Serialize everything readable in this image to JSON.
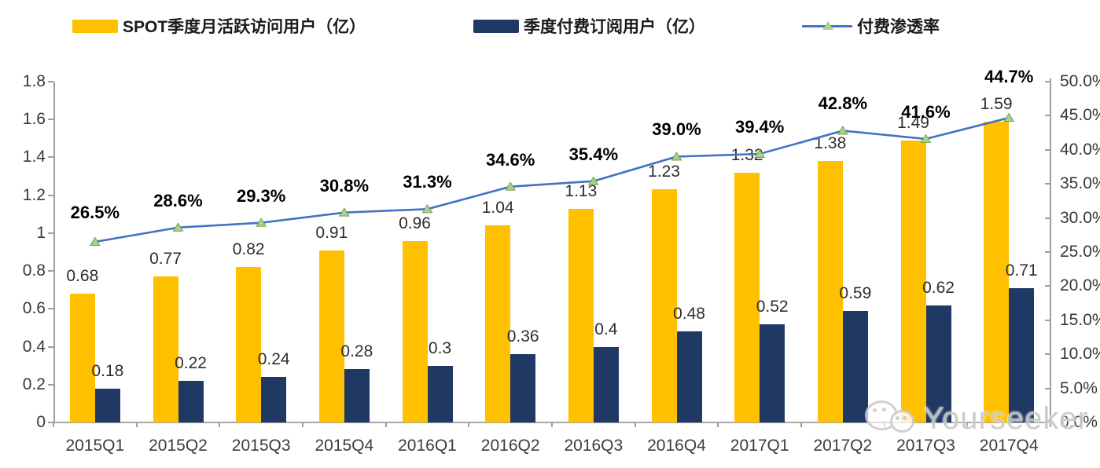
{
  "legend": {
    "items": [
      {
        "label": "SPOT季度月活跃访问用户（亿）",
        "color": "#FFC000",
        "type": "bar"
      },
      {
        "label": "季度付费订阅用户（亿）",
        "color": "#1F3864",
        "type": "bar"
      },
      {
        "label": "付费渗透率",
        "color": "#4472C4",
        "marker_color": "#A9D18E",
        "type": "line"
      }
    ]
  },
  "chart_data": {
    "type": "combo-bar-line",
    "categories": [
      "2015Q1",
      "2015Q2",
      "2015Q3",
      "2015Q4",
      "2016Q1",
      "2016Q2",
      "2016Q3",
      "2016Q4",
      "2017Q1",
      "2017Q2",
      "2017Q3",
      "2017Q4"
    ],
    "series": [
      {
        "name": "SPOT季度月活跃访问用户（亿）",
        "type": "bar",
        "axis": "left",
        "color": "#FFC000",
        "values": [
          0.68,
          0.77,
          0.82,
          0.91,
          0.96,
          1.04,
          1.13,
          1.23,
          1.32,
          1.38,
          1.49,
          1.59
        ],
        "labels": [
          "0.68",
          "0.77",
          "0.82",
          "0.91",
          "0.96",
          "1.04",
          "1.13",
          "1.23",
          "1.32",
          "1.38",
          "1.49",
          "1.59"
        ]
      },
      {
        "name": "季度付费订阅用户（亿）",
        "type": "bar",
        "axis": "left",
        "color": "#1F3864",
        "values": [
          0.18,
          0.22,
          0.24,
          0.28,
          0.3,
          0.36,
          0.4,
          0.48,
          0.52,
          0.59,
          0.62,
          0.71
        ],
        "labels": [
          "0.18",
          "0.22",
          "0.24",
          "0.28",
          "0.3",
          "0.36",
          "0.4",
          "0.48",
          "0.52",
          "0.59",
          "0.62",
          "0.71"
        ]
      },
      {
        "name": "付费渗透率",
        "type": "line",
        "axis": "right",
        "color": "#4472C4",
        "marker": "triangle",
        "marker_fill": "#A9D18E",
        "marker_stroke": "#71A544",
        "values": [
          26.5,
          28.6,
          29.3,
          30.8,
          31.3,
          34.6,
          35.4,
          39.0,
          39.4,
          42.8,
          41.6,
          44.7
        ],
        "labels": [
          "26.5%",
          "28.6%",
          "29.3%",
          "30.8%",
          "31.3%",
          "34.6%",
          "35.4%",
          "39.0%",
          "39.4%",
          "42.8%",
          "41.6%",
          "44.7%"
        ]
      }
    ],
    "left_axis": {
      "min": 0,
      "max": 1.8,
      "step": 0.2,
      "tick_values": [
        1.8,
        1.6,
        1.4,
        1.2,
        1,
        0.8,
        0.6,
        0.4,
        0.2,
        0
      ],
      "tick_labels": [
        "1.8",
        "1.6",
        "1.4",
        "1.2",
        "1",
        "0.8",
        "0.6",
        "0.4",
        "0.2",
        "0"
      ]
    },
    "right_axis": {
      "min": 0,
      "max": 50,
      "step": 5,
      "tick_values": [
        50,
        45,
        40,
        35,
        30,
        25,
        20,
        15,
        10,
        5,
        0
      ],
      "tick_labels": [
        "50.0%",
        "45.0%",
        "40.0%",
        "35.0%",
        "30.0%",
        "25.0%",
        "20.0%",
        "15.0%",
        "10.0%",
        "5.0%",
        "0.0%"
      ]
    },
    "grid": false,
    "legend_position": "top"
  },
  "watermark": {
    "text": "Yourseeker",
    "icon": "wechat-icon"
  }
}
